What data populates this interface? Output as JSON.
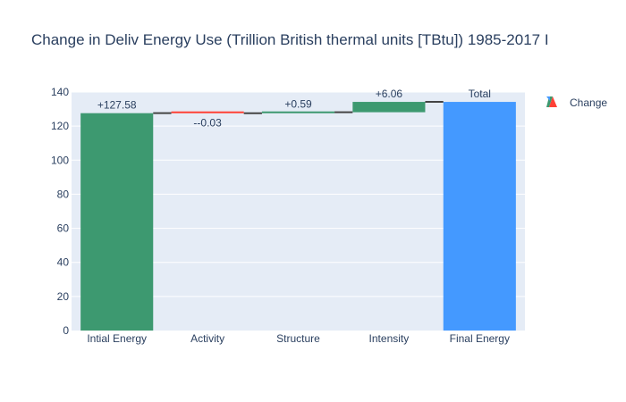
{
  "chart_data": {
    "type": "waterfall",
    "title": "Change in Deliv Energy Use (Trillion British thermal units [TBtu]) 1985-2017 I",
    "categories": [
      "Intial Energy",
      "Activity",
      "Structure",
      "Intensity",
      "Final Energy"
    ],
    "measures": [
      "relative",
      "relative",
      "relative",
      "relative",
      "total"
    ],
    "values": [
      127.58,
      -0.03,
      0.59,
      6.06,
      134.2
    ],
    "labels": [
      "+127.58",
      "--0.03",
      "+0.59",
      "+6.06",
      "Total"
    ],
    "ylim": [
      0,
      140
    ],
    "yticks": [
      0,
      20,
      40,
      60,
      80,
      100,
      120,
      140
    ],
    "grid": true,
    "legend": {
      "entries": [
        "Change"
      ],
      "position": "top-right"
    },
    "colors": {
      "increasing": "#3d9970",
      "decreasing": "#ff4136",
      "total": "#4499ff",
      "connector": "#444444",
      "plot_bg": "#e5ecf6",
      "grid": "#ffffff",
      "text": "#2a3f5f"
    }
  }
}
